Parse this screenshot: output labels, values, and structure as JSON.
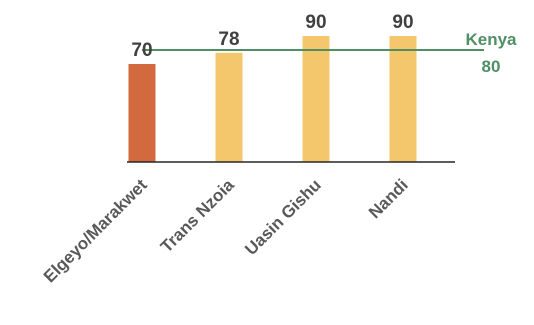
{
  "chart_data": {
    "type": "bar",
    "categories": [
      "Elgeyo/Marakwet",
      "Trans Nzoia",
      "Uasin Gishu",
      "Nandi"
    ],
    "values": [
      70,
      78,
      90,
      90
    ],
    "ylim": [
      0,
      90
    ],
    "reference_line": {
      "label": "Kenya",
      "value": 80
    },
    "colors": {
      "highlight_bar": "#D2693F",
      "bar": "#F5C76C",
      "reference_line": "#4F8F63",
      "axis": "#262626"
    },
    "title": "",
    "xlabel": "",
    "ylabel": ""
  }
}
